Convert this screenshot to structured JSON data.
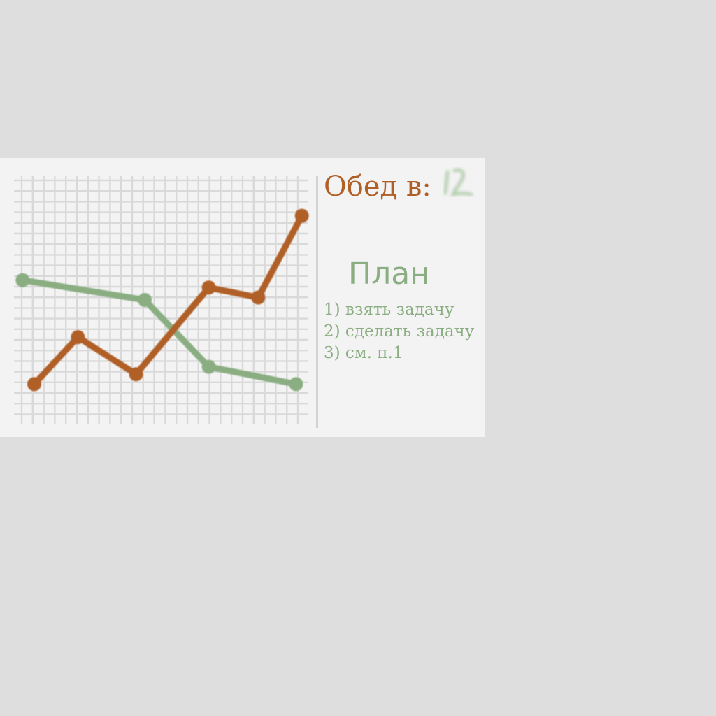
{
  "board": {
    "lunch_label": "Обед в:",
    "plan_title": "План",
    "plan_items": [
      "1) взять задачу",
      "2) сделать задачу",
      "3) см. п.1"
    ]
  },
  "colors": {
    "background": "#dedede",
    "board": "#f3f3f3",
    "grid": "#d9d9d9",
    "green": "#8aae82",
    "orange": "#b05f27"
  },
  "icons": {
    "lunch_time": "scribble-icon"
  },
  "chart_data": {
    "type": "line",
    "title": "",
    "xlabel": "",
    "ylabel": "",
    "grid": true,
    "legend": "none",
    "xlim": [
      0,
      10
    ],
    "ylim": [
      0,
      10
    ],
    "series": [
      {
        "color": "#8aae82",
        "points": [
          [
            0.2,
            5.8
          ],
          [
            4.4,
            5.0
          ],
          [
            6.6,
            2.3
          ],
          [
            9.6,
            1.6
          ]
        ]
      },
      {
        "color": "#b05f27",
        "points": [
          [
            0.6,
            1.6
          ],
          [
            2.1,
            3.5
          ],
          [
            4.1,
            2.0
          ],
          [
            6.6,
            5.5
          ],
          [
            8.3,
            5.1
          ],
          [
            9.8,
            8.4
          ]
        ]
      }
    ]
  }
}
